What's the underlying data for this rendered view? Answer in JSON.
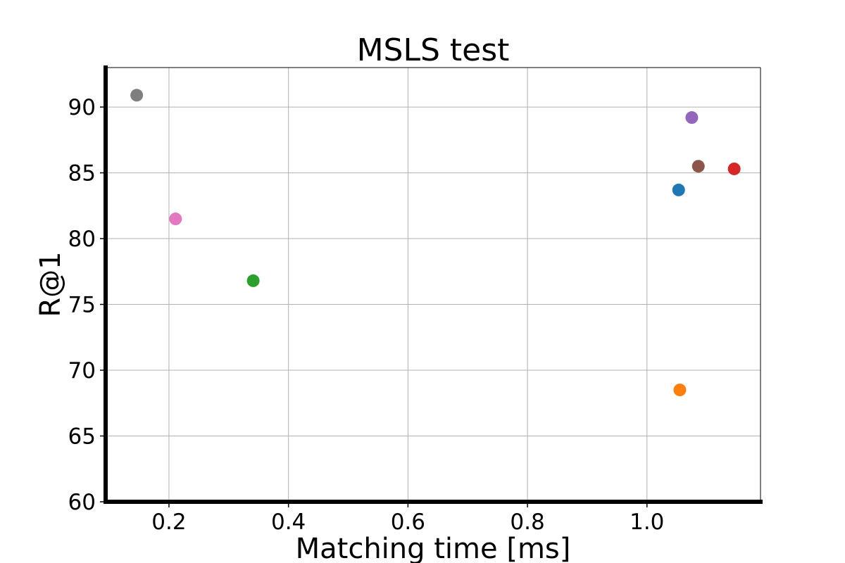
{
  "chart_data": {
    "type": "scatter",
    "title": "MSLS test",
    "xlabel": "Matching time [ms]",
    "ylabel": "R@1",
    "xlim": [
      0.094,
      1.19
    ],
    "ylim": [
      60,
      93
    ],
    "xticks": [
      0.2,
      0.4,
      0.6,
      0.8,
      1.0
    ],
    "xtick_labels": [
      "0.2",
      "0.4",
      "0.6",
      "0.8",
      "1.0"
    ],
    "yticks": [
      60,
      65,
      70,
      75,
      80,
      85,
      90
    ],
    "ytick_labels": [
      "60",
      "65",
      "70",
      "75",
      "80",
      "85",
      "90"
    ],
    "grid": true,
    "points": [
      {
        "x": 0.146,
        "y": 90.9,
        "color": "#7f7f7f"
      },
      {
        "x": 0.211,
        "y": 81.5,
        "color": "#e377c2"
      },
      {
        "x": 0.341,
        "y": 76.8,
        "color": "#2ca02c"
      },
      {
        "x": 1.053,
        "y": 83.7,
        "color": "#1f77b4"
      },
      {
        "x": 1.055,
        "y": 68.5,
        "color": "#ff7f0e"
      },
      {
        "x": 1.075,
        "y": 89.2,
        "color": "#9467bd"
      },
      {
        "x": 1.086,
        "y": 85.5,
        "color": "#8c564b"
      },
      {
        "x": 1.146,
        "y": 85.3,
        "color": "#d62728"
      }
    ]
  }
}
